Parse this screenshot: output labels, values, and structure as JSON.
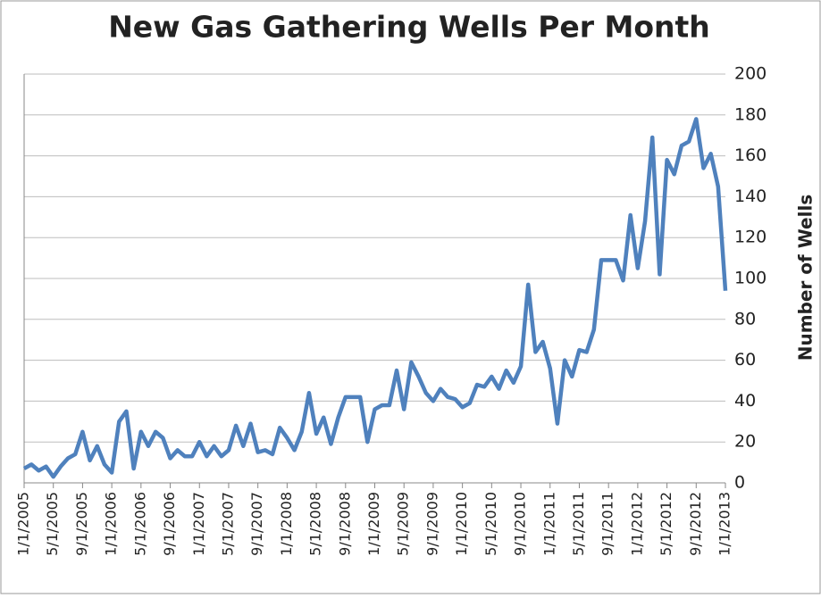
{
  "chart_data": {
    "type": "line",
    "title": "New Gas Gathering Wells Per Month",
    "y_axis_label": "Number of Wells",
    "categories": [
      "1/1/2005",
      null,
      null,
      null,
      "5/1/2005",
      null,
      null,
      null,
      "9/1/2005",
      null,
      null,
      null,
      "1/1/2006",
      null,
      null,
      null,
      "5/1/2006",
      null,
      null,
      null,
      "9/1/2006",
      null,
      null,
      null,
      "1/1/2007",
      null,
      null,
      null,
      "5/1/2007",
      null,
      null,
      null,
      "9/1/2007",
      null,
      null,
      null,
      "1/1/2008",
      null,
      null,
      null,
      "5/1/2008",
      null,
      null,
      null,
      "9/1/2008",
      null,
      null,
      null,
      "1/1/2009",
      null,
      null,
      null,
      "5/1/2009",
      null,
      null,
      null,
      "9/1/2009",
      null,
      null,
      null,
      "1/1/2010",
      null,
      null,
      null,
      "5/1/2010",
      null,
      null,
      null,
      "9/1/2010",
      null,
      null,
      null,
      "1/1/2011",
      null,
      null,
      null,
      "5/1/2011",
      null,
      null,
      null,
      "9/1/2011",
      null,
      null,
      null,
      "1/1/2012",
      null,
      null,
      null,
      "5/1/2012",
      null,
      null,
      null,
      "9/1/2012",
      null,
      null,
      null,
      "1/1/2013"
    ],
    "series": [
      {
        "name": "Number of Wells",
        "color": "#4f81bd",
        "values": [
          7,
          9,
          6,
          8,
          3,
          8,
          12,
          14,
          25,
          11,
          18,
          9,
          5,
          30,
          35,
          7,
          25,
          18,
          25,
          22,
          12,
          16,
          13,
          13,
          20,
          13,
          18,
          13,
          16,
          28,
          18,
          29,
          15,
          16,
          14,
          27,
          22,
          16,
          25,
          44,
          24,
          32,
          19,
          32,
          42,
          42,
          42,
          20,
          36,
          38,
          38,
          55,
          36,
          59,
          52,
          44,
          40,
          46,
          42,
          41,
          37,
          39,
          48,
          47,
          52,
          46,
          55,
          49,
          57,
          97,
          64,
          69,
          56,
          29,
          60,
          52,
          65,
          64,
          75,
          109,
          109,
          109,
          99,
          131,
          105,
          128,
          169,
          102,
          158,
          151,
          165,
          167,
          178,
          154,
          161,
          145,
          94
        ]
      }
    ],
    "ylim": [
      0,
      200
    ],
    "yticks": [
      0,
      20,
      40,
      60,
      80,
      100,
      120,
      140,
      160,
      180,
      200
    ],
    "grid": true
  }
}
